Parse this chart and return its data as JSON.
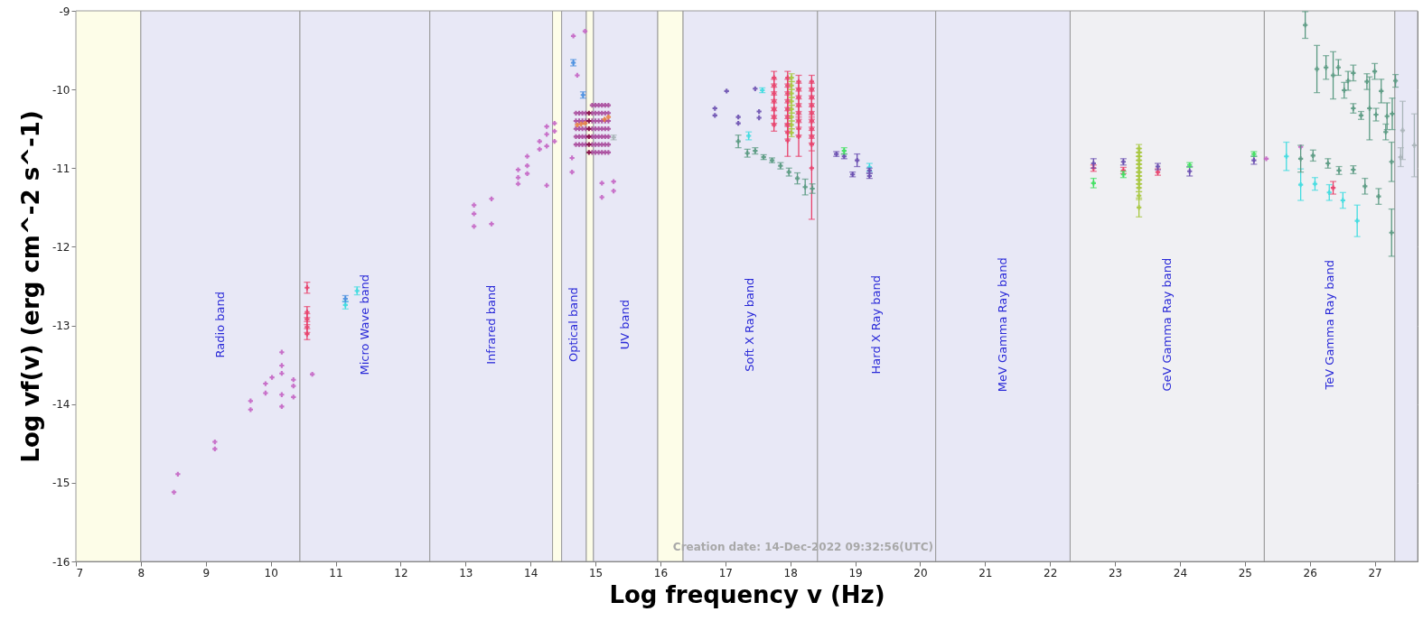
{
  "chart_data": {
    "type": "scatter",
    "xlabel": "Log frequency v (Hz)",
    "ylabel": "Log vf(v) (erg cm^-2 s^-1)",
    "xlim": [
      7,
      27.66
    ],
    "ylim": [
      -16,
      -9
    ],
    "xticks": [
      7,
      8,
      9,
      10,
      11,
      12,
      13,
      14,
      15,
      16,
      17,
      18,
      19,
      20,
      21,
      22,
      23,
      24,
      25,
      26,
      27
    ],
    "yticks": [
      -16,
      -15,
      -14,
      -13,
      -12,
      -11,
      -10,
      -9
    ],
    "grid": true,
    "marker": "cross",
    "annotations": [
      "Creation date: 14-Dec-2022 09:32:56(UTC)"
    ],
    "bands": [
      {
        "axis": "x",
        "from": 7,
        "to": 8,
        "color": "#fdfde8"
      },
      {
        "axis": "x",
        "from": 8,
        "to": 10.45,
        "label": "Radio band",
        "color": "#e8e8f6"
      },
      {
        "axis": "x",
        "from": 10.45,
        "to": 12.45,
        "label": "Micro Wave band",
        "color": "#e8e8f6"
      },
      {
        "axis": "x",
        "from": 12.45,
        "to": 14.34,
        "label": "Infrared band",
        "color": "#e8e8f6"
      },
      {
        "axis": "x",
        "from": 14.34,
        "to": 14.48,
        "color": "#fdfde8"
      },
      {
        "axis": "x",
        "from": 14.48,
        "to": 14.86,
        "label": "Optical band",
        "color": "#e8e8f6"
      },
      {
        "axis": "x",
        "from": 14.86,
        "to": 14.97,
        "color": "#fdfde8"
      },
      {
        "axis": "x",
        "from": 14.97,
        "to": 15.96,
        "label": "UV band",
        "color": "#e8e8f6"
      },
      {
        "axis": "x",
        "from": 15.96,
        "to": 16.35,
        "color": "#fdfde8"
      },
      {
        "axis": "x",
        "from": 16.35,
        "to": 18.42,
        "label": "Soft X Ray band",
        "color": "#e8e8f6"
      },
      {
        "axis": "x",
        "from": 18.42,
        "to": 20.24,
        "label": "Hard X Ray band",
        "color": "#e8e8f6"
      },
      {
        "axis": "x",
        "from": 20.24,
        "to": 22.31,
        "label": "MeV Gamma Ray band",
        "color": "#e8e8f6"
      },
      {
        "axis": "x",
        "from": 22.31,
        "to": 25.3,
        "label": "GeV Gamma Ray band",
        "color": "#f0f0f3"
      },
      {
        "axis": "x",
        "from": 25.3,
        "to": 27.31,
        "label": "TeV Gamma Ray band",
        "color": "#f0f0f3"
      },
      {
        "axis": "x",
        "from": 27.31,
        "to": 27.66,
        "color": "#e8e8f6"
      }
    ],
    "series": [
      {
        "color": "#c464c4",
        "x": [
          8.51,
          8.57,
          9.14,
          9.14,
          9.69,
          9.69,
          9.92,
          9.92,
          10.02,
          10.17,
          10.17,
          10.17,
          10.17,
          10.17,
          10.35,
          10.35,
          10.35,
          10.64,
          13.13,
          13.13,
          13.13,
          13.4,
          13.4,
          13.81,
          13.81,
          13.81,
          13.95,
          13.95,
          13.95,
          14.14,
          14.14,
          14.25,
          14.25,
          14.25,
          14.25,
          14.37,
          14.37,
          14.37,
          14.66,
          14.84,
          14.72,
          14.64,
          14.64,
          15.1,
          15.1,
          15.28,
          15.28,
          25.33,
          25.86
        ],
        "values": [
          -15.12,
          -14.89,
          -14.48,
          -14.57,
          -13.96,
          -14.07,
          -13.74,
          -13.86,
          -13.66,
          -13.34,
          -13.51,
          -13.61,
          -13.88,
          -14.03,
          -13.69,
          -13.77,
          -13.91,
          -13.62,
          -11.47,
          -11.58,
          -11.74,
          -11.39,
          -11.71,
          -11.02,
          -11.12,
          -11.2,
          -10.85,
          -10.97,
          -11.07,
          -10.66,
          -10.76,
          -10.47,
          -10.57,
          -10.72,
          -11.22,
          -10.43,
          -10.53,
          -10.66,
          -9.32,
          -9.26,
          -9.82,
          -10.87,
          -11.05,
          -11.19,
          -11.37,
          -11.17,
          -11.29,
          -10.88,
          -10.73
        ]
      },
      {
        "color": "#a84a9c",
        "x": [
          14.7,
          14.7,
          14.7,
          14.7,
          14.7,
          14.75,
          14.75,
          14.75,
          14.75,
          14.75,
          14.8,
          14.8,
          14.8,
          14.8,
          14.8,
          14.85,
          14.85,
          14.85,
          14.85,
          14.85,
          14.95,
          14.95,
          14.95,
          14.95,
          14.95,
          14.95,
          14.95,
          15.0,
          15.0,
          15.0,
          15.0,
          15.0,
          15.0,
          15.0,
          15.05,
          15.05,
          15.05,
          15.05,
          15.05,
          15.05,
          15.05,
          15.1,
          15.1,
          15.1,
          15.1,
          15.1,
          15.1,
          15.1,
          15.15,
          15.15,
          15.15,
          15.15,
          15.15,
          15.15,
          15.15,
          15.2,
          15.2,
          15.2,
          15.2,
          15.2,
          15.2,
          15.2
        ],
        "values": [
          -10.3,
          -10.4,
          -10.5,
          -10.6,
          -10.7,
          -10.3,
          -10.4,
          -10.5,
          -10.6,
          -10.7,
          -10.3,
          -10.4,
          -10.5,
          -10.6,
          -10.7,
          -10.3,
          -10.4,
          -10.5,
          -10.6,
          -10.7,
          -10.2,
          -10.3,
          -10.4,
          -10.5,
          -10.6,
          -10.7,
          -10.8,
          -10.2,
          -10.3,
          -10.4,
          -10.5,
          -10.6,
          -10.7,
          -10.8,
          -10.2,
          -10.3,
          -10.4,
          -10.5,
          -10.6,
          -10.7,
          -10.8,
          -10.2,
          -10.3,
          -10.4,
          -10.5,
          -10.6,
          -10.7,
          -10.8,
          -10.2,
          -10.3,
          -10.4,
          -10.5,
          -10.6,
          -10.7,
          -10.8,
          -10.2,
          -10.3,
          -10.4,
          -10.5,
          -10.6,
          -10.7,
          -10.8
        ]
      },
      {
        "color": "#800040",
        "x": [
          14.9,
          14.9,
          14.9,
          14.9,
          14.9,
          14.9
        ],
        "values": [
          -10.3,
          -10.4,
          -10.5,
          -10.6,
          -10.7,
          -10.8
        ]
      },
      {
        "color": "#e88040",
        "x": [
          14.72,
          14.78,
          14.84,
          15.14,
          15.2
        ],
        "values": [
          -10.45,
          -10.44,
          -10.43,
          -10.38,
          -10.35
        ]
      },
      {
        "color": "#e8406a",
        "x": [
          10.56,
          10.56,
          10.56,
          10.56,
          10.56,
          17.75,
          17.75,
          17.75,
          17.75,
          17.75,
          17.75,
          17.75,
          17.96,
          17.96,
          17.96,
          17.96,
          17.96,
          17.96,
          17.96,
          17.96,
          17.96,
          18.13,
          18.13,
          18.13,
          18.13,
          18.13,
          18.13,
          18.13,
          18.13,
          18.33,
          18.33,
          18.33,
          18.33,
          18.33,
          18.33,
          18.33,
          18.33,
          18.33,
          18.33,
          22.67,
          23.13,
          23.66,
          26.36
        ],
        "values": [
          -12.52,
          -12.83,
          -12.92,
          -13.02,
          -13.11,
          -9.85,
          -9.95,
          -10.05,
          -10.15,
          -10.25,
          -10.35,
          -10.45,
          -9.85,
          -9.95,
          -10.05,
          -10.15,
          -10.25,
          -10.35,
          -10.45,
          -10.55,
          -10.65,
          -9.9,
          -10.0,
          -10.1,
          -10.2,
          -10.3,
          -10.4,
          -10.5,
          -10.6,
          -9.9,
          -10.0,
          -10.1,
          -10.2,
          -10.3,
          -10.4,
          -10.5,
          -10.6,
          -10.7,
          -11.0,
          -11.0,
          -11.03,
          -11.05,
          -11.25
        ],
        "errors": [
          0.07,
          0.07,
          0.07,
          0.07,
          0.07,
          0.08,
          0.08,
          0.08,
          0.08,
          0.08,
          0.08,
          0.08,
          0.08,
          0.08,
          0.08,
          0.08,
          0.08,
          0.08,
          0.08,
          0.08,
          0.2,
          0.08,
          0.08,
          0.08,
          0.08,
          0.08,
          0.08,
          0.08,
          0.25,
          0.08,
          0.08,
          0.08,
          0.08,
          0.08,
          0.08,
          0.08,
          0.08,
          0.08,
          0.65,
          0.04,
          0.04,
          0.04,
          0.08
        ]
      },
      {
        "color": "#40dce0",
        "x": [
          11.15,
          11.33,
          17.36,
          17.57,
          19.22,
          25.64,
          25.86,
          26.08,
          26.3,
          26.51,
          26.73
        ],
        "values": [
          -12.74,
          -12.56,
          -10.59,
          -10.01,
          -10.99,
          -10.85,
          -11.21,
          -11.2,
          -11.31,
          -11.41,
          -11.67
        ],
        "errors": [
          0.05,
          0.05,
          0.05,
          0.03,
          0.05,
          0.18,
          0.2,
          0.08,
          0.1,
          0.1,
          0.2
        ]
      },
      {
        "color": "#4a90e0",
        "x": [
          11.15,
          14.66,
          14.81
        ],
        "values": [
          -12.66,
          -9.66,
          -10.07
        ],
        "errors": [
          0.04,
          0.04,
          0.04
        ]
      },
      {
        "color": "#5a9a82",
        "x": [
          17.2,
          17.34,
          17.46,
          17.59,
          17.72,
          17.85,
          17.98,
          18.11,
          18.23,
          18.34,
          25.86,
          25.93,
          26.05,
          26.11,
          26.25,
          26.28,
          26.36,
          26.44,
          26.45,
          26.53,
          26.56,
          26.59,
          26.67,
          26.67,
          26.67,
          26.79,
          26.85,
          26.88,
          26.92,
          27.0,
          27.02,
          27.06,
          27.1,
          27.17,
          27.19,
          27.26,
          27.27,
          27.26,
          27.32
        ],
        "values": [
          -10.66,
          -10.81,
          -10.78,
          -10.86,
          -10.9,
          -10.97,
          -11.05,
          -11.13,
          -11.24,
          -11.26,
          -10.88,
          -9.18,
          -10.84,
          -9.74,
          -9.72,
          -10.94,
          -9.82,
          -9.72,
          -11.03,
          -10.01,
          null,
          -9.89,
          -9.79,
          -10.24,
          -11.02,
          -10.33,
          -11.23,
          -9.9,
          -10.24,
          -9.77,
          -10.32,
          -11.36,
          -10.02,
          -10.54,
          -10.34,
          -10.92,
          -10.31,
          -11.82,
          -9.89
        ],
        "errors": [
          0.08,
          0.05,
          0.04,
          0.03,
          0.03,
          0.04,
          0.05,
          0.07,
          0.1,
          0.06,
          0.17,
          0.17,
          0.07,
          0.3,
          0.15,
          0.06,
          0.3,
          0.1,
          0.05,
          0.1,
          null,
          0.12,
          0.1,
          0.06,
          0.05,
          0.05,
          0.1,
          0.1,
          0.4,
          0.1,
          0.08,
          0.1,
          0.15,
          0.1,
          0.17,
          0.25,
          0.2,
          0.3,
          0.08
        ]
      },
      {
        "color": "#a8b4b8",
        "x": [
          15.28,
          27.4,
          27.43,
          27.61
        ],
        "values": [
          -10.61,
          -10.86,
          -10.52,
          -10.71
        ],
        "errors": [
          0.03,
          0.12,
          0.37,
          0.4
        ]
      },
      {
        "color": "#a8c840",
        "x": [
          18.02,
          18.02,
          18.02,
          18.02,
          18.02,
          18.02,
          18.02,
          18.02,
          23.37,
          23.37,
          23.37,
          23.37,
          23.37,
          23.37,
          23.37,
          23.37,
          23.37,
          23.37,
          23.37,
          23.37,
          23.37
        ],
        "values": [
          -9.85,
          -9.95,
          -10.05,
          -10.15,
          -10.25,
          -10.35,
          -10.45,
          -10.55,
          -10.75,
          -10.8,
          -10.85,
          -10.9,
          -10.95,
          -11.0,
          -11.05,
          -11.1,
          -11.15,
          -11.2,
          -11.25,
          -11.35,
          -11.5
        ],
        "errors": [
          0.05,
          0.05,
          0.05,
          0.05,
          0.05,
          0.05,
          0.05,
          0.05,
          0.05,
          0.05,
          0.05,
          0.05,
          0.05,
          0.05,
          0.05,
          0.05,
          0.05,
          0.05,
          0.05,
          0.05,
          0.12
        ]
      },
      {
        "color": "#6a4fb0",
        "x": [
          16.84,
          16.84,
          17.2,
          17.2,
          17.52,
          17.52,
          17.02,
          17.46,
          18.71,
          18.83,
          19.03,
          18.96,
          19.22,
          19.22,
          22.67,
          23.13,
          23.66,
          24.15,
          25.14
        ],
        "values": [
          -10.24,
          -10.33,
          -10.35,
          -10.43,
          -10.28,
          -10.36,
          -10.02,
          -9.99,
          -10.82,
          -10.85,
          -10.9,
          -11.08,
          -11.03,
          -11.1,
          -10.94,
          -10.92,
          -10.98,
          -11.04,
          -10.9
        ],
        "errors": [
          null,
          null,
          null,
          null,
          null,
          null,
          null,
          null,
          0.03,
          0.03,
          0.08,
          0.03,
          0.03,
          0.03,
          0.06,
          0.04,
          0.04,
          0.06,
          0.05
        ]
      },
      {
        "color": "#40e060",
        "x": [
          18.83,
          22.67,
          23.13,
          24.15,
          25.14
        ],
        "values": [
          -10.78,
          -11.19,
          -11.08,
          -10.96,
          -10.82
        ],
        "errors": [
          0.04,
          0.06,
          0.04,
          0.03,
          0.03
        ]
      }
    ]
  }
}
